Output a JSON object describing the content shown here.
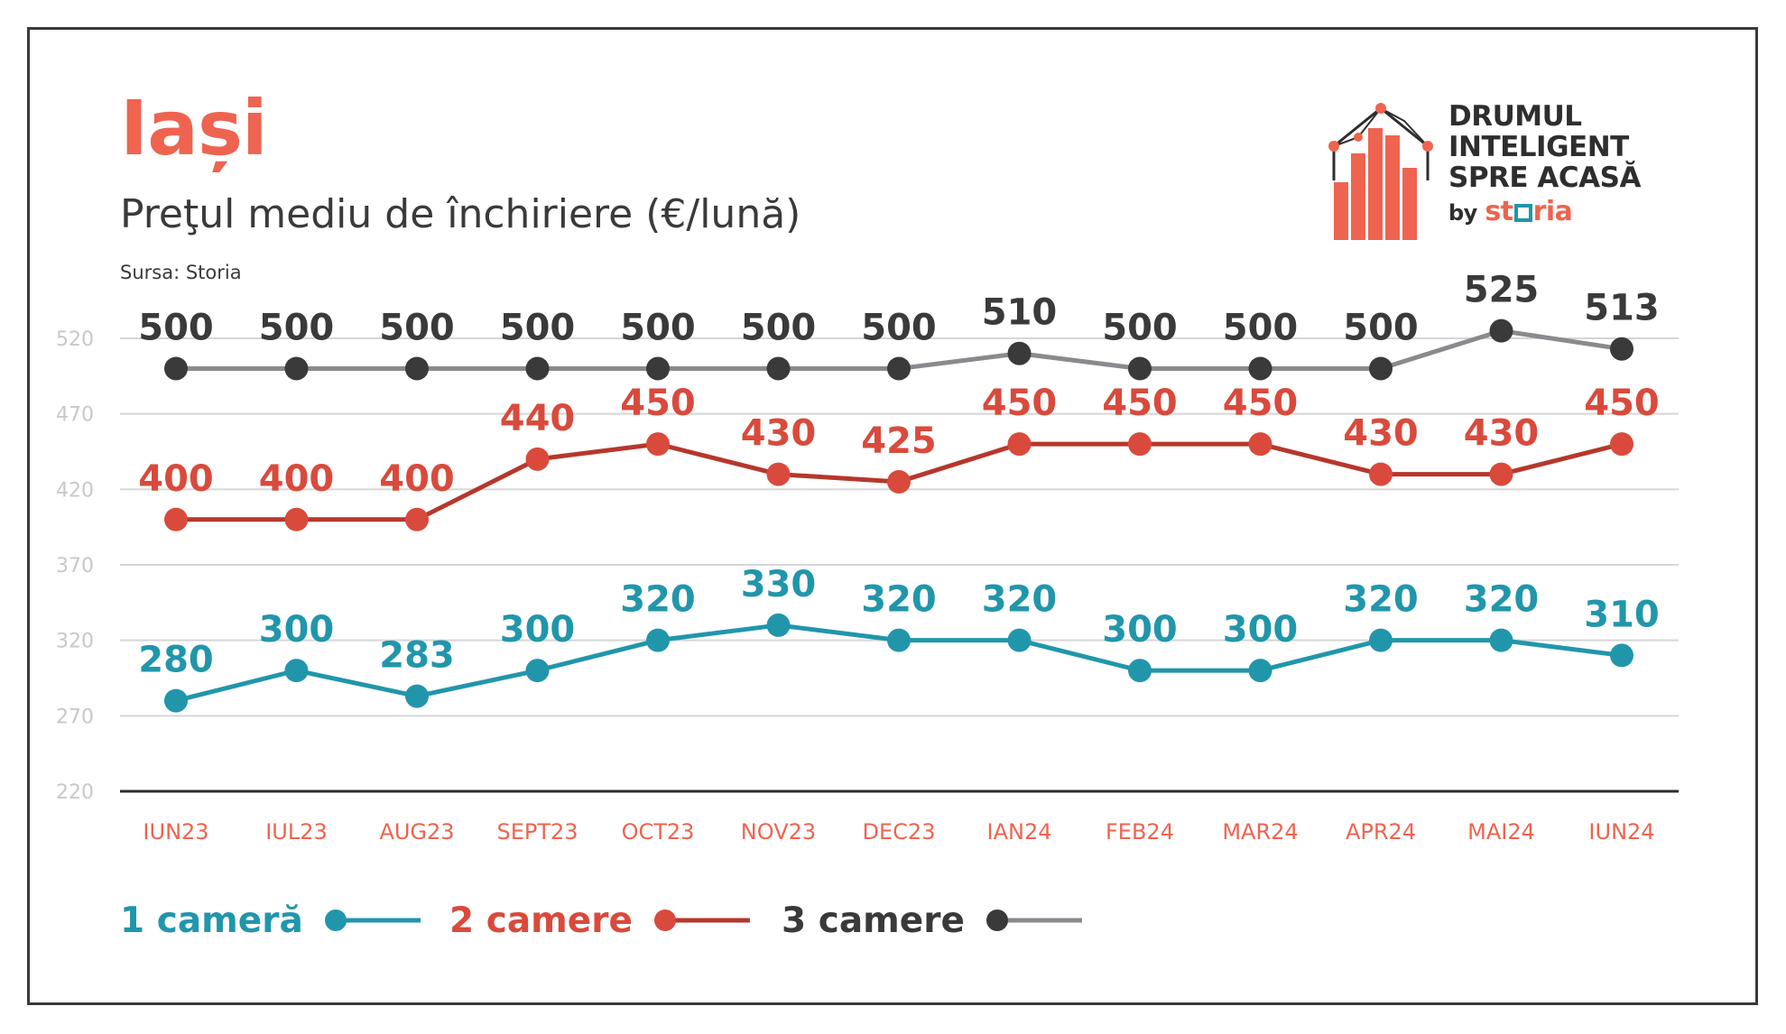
{
  "header": {
    "city": "Iași",
    "subtitle": "Preţul mediu de închiriere (€/lună)",
    "source": "Sursa: Storia"
  },
  "brand": {
    "lines": [
      "DRUMUL",
      "INTELIGENT",
      "SPRE ACASĂ"
    ],
    "by": "by",
    "storia_pre": "st",
    "storia_post": "ria",
    "icon": "house-bar-chart-icon"
  },
  "colors": {
    "one_room": "#2196ab",
    "two_rooms": "#b6372b",
    "three_rooms": "#3a3a3a",
    "three_rooms_line": "#8a8a8e",
    "accent": "#ee6450",
    "grid": "#d6d6d6"
  },
  "legend": [
    {
      "label": "1 cameră",
      "series": "1 cameră"
    },
    {
      "label": "2 camere",
      "series": "2 camere"
    },
    {
      "label": "3 camere",
      "series": "3 camere"
    }
  ],
  "chart_data": {
    "type": "line",
    "categories": [
      "IUN23",
      "IUL23",
      "AUG23",
      "SEPT23",
      "OCT23",
      "NOV23",
      "DEC23",
      "IAN24",
      "FEB24",
      "MAR24",
      "APR24",
      "MAI24",
      "IUN24"
    ],
    "yticks": [
      220,
      270,
      320,
      370,
      420,
      470,
      520
    ],
    "ylim": [
      220,
      520
    ],
    "grid": true,
    "legend_position": "bottom",
    "series": [
      {
        "name": "1 cameră",
        "values": [
          280,
          300,
          283,
          300,
          320,
          330,
          320,
          320,
          300,
          300,
          320,
          320,
          310
        ]
      },
      {
        "name": "2 camere",
        "values": [
          400,
          400,
          400,
          440,
          450,
          430,
          425,
          450,
          450,
          450,
          430,
          430,
          450
        ]
      },
      {
        "name": "3 camere",
        "values": [
          500,
          500,
          500,
          500,
          500,
          500,
          500,
          510,
          500,
          500,
          500,
          525,
          513
        ]
      }
    ]
  }
}
